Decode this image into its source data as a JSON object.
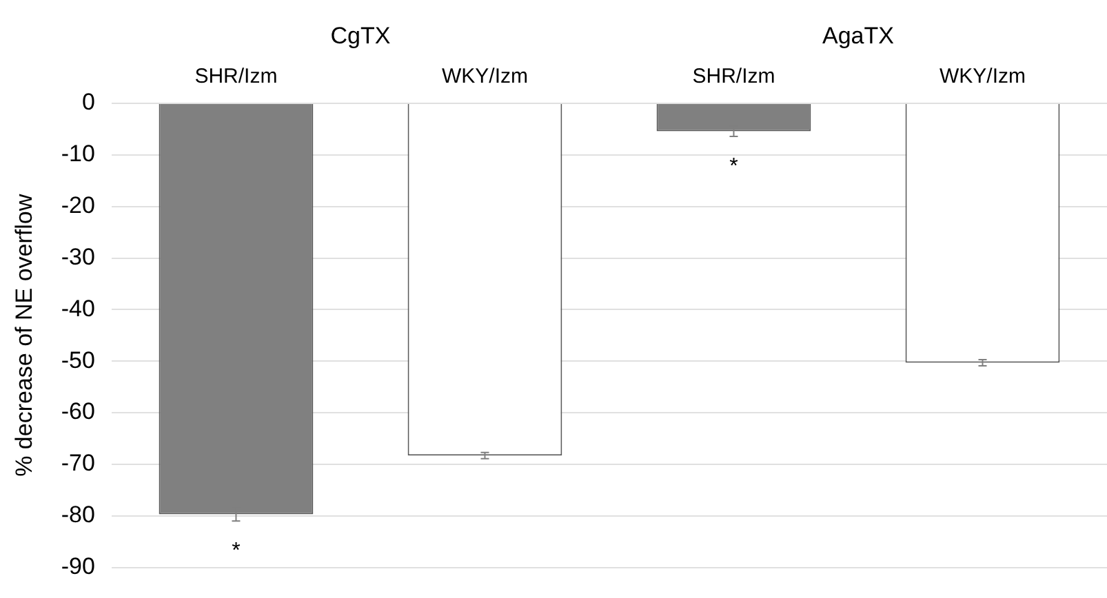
{
  "chart_data": {
    "type": "bar",
    "ylabel": "% decrease of NE overflow",
    "categories": [
      "SHR/Izm",
      "WKY/Izm",
      "SHR/Izm",
      "WKY/Izm"
    ],
    "values": [
      -79.7,
      -68.3,
      -5.4,
      -50.3
    ],
    "colors": [
      "#808080",
      "#ffffff",
      "#808080",
      "#ffffff"
    ],
    "errors": [
      1.3,
      0.6,
      1.0,
      0.6
    ],
    "value_labels": [
      "*",
      null,
      "*",
      null
    ],
    "annotations": [
      "CgTX",
      "AgaTX"
    ],
    "ylim": [
      -90,
      0
    ],
    "yticks": [
      0,
      -10,
      -20,
      -30,
      -40,
      -50,
      -60,
      -70,
      -80,
      -90
    ],
    "grid": "y",
    "legend": false
  }
}
